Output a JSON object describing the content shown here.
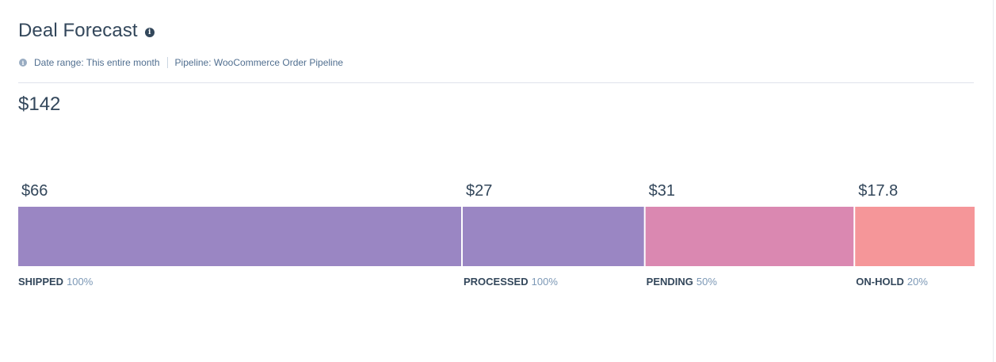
{
  "header": {
    "title": "Deal Forecast",
    "title_info_icon": "info-icon"
  },
  "filters": {
    "date_range": "Date range: This entire month",
    "pipeline": "Pipeline: WooCommerce Order Pipeline"
  },
  "total": "$142",
  "colors": {
    "text_dark": "#33475b",
    "text_muted": "#7c98b6",
    "shipped": "#9a86c3",
    "processed": "#9a86c3",
    "pending": "#da88b1",
    "on_hold": "#f59699"
  },
  "chart_data": {
    "type": "bar",
    "orientation": "horizontal-stacked",
    "categories": [
      "SHIPPED",
      "PROCESSED",
      "PENDING",
      "ON-HOLD"
    ],
    "values": [
      66,
      27,
      31,
      17.8
    ],
    "value_labels": [
      "$66",
      "$27",
      "$31",
      "$17.8"
    ],
    "probabilities": [
      "100%",
      "100%",
      "50%",
      "20%"
    ],
    "colors": [
      "#9a86c3",
      "#9a86c3",
      "#da88b1",
      "#f59699"
    ]
  }
}
